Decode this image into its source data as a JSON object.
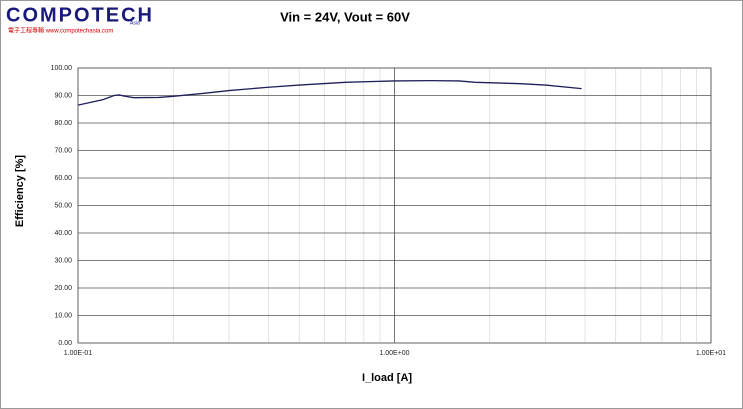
{
  "logo": {
    "name": "COMPOTECH",
    "region": "Asia",
    "subtitle": "電子工程專輯 www.compotechasia.com"
  },
  "chart_data": {
    "type": "line",
    "title": "Vin = 24V, Vout = 60V",
    "xlabel": "I_load  [A]",
    "ylabel": "Efficiency  [%]",
    "x": [
      0.1,
      0.12,
      0.13,
      0.135,
      0.14,
      0.15,
      0.18,
      0.2,
      0.25,
      0.3,
      0.4,
      0.5,
      0.7,
      1.0,
      1.3,
      1.6,
      1.8,
      2.5,
      3.0,
      3.9
    ],
    "values": [
      86.5,
      88.5,
      90,
      90.2,
      89.8,
      89.2,
      89.3,
      89.7,
      90.8,
      91.8,
      93,
      93.8,
      94.8,
      95.3,
      95.4,
      95.3,
      94.8,
      94.3,
      93.8,
      92.5
    ],
    "color": "#1f1f5c",
    "xscale": "log",
    "grid": true,
    "xlim": [
      0.1,
      10
    ],
    "xticks": [
      {
        "value": 0.1,
        "label": "1.00E-01"
      },
      {
        "value": 1,
        "label": "1.00E+00"
      },
      {
        "value": 10,
        "label": "1.00E+01"
      }
    ],
    "ylim": [
      0,
      100
    ],
    "yticks": [
      {
        "value": 0,
        "label": "0.00"
      },
      {
        "value": 10,
        "label": "10.00"
      },
      {
        "value": 20,
        "label": "20.00"
      },
      {
        "value": 30,
        "label": "30.00"
      },
      {
        "value": 40,
        "label": "40.00"
      },
      {
        "value": 50,
        "label": "50.00"
      },
      {
        "value": 60,
        "label": "60.00"
      },
      {
        "value": 70,
        "label": "70.00"
      },
      {
        "value": 80,
        "label": "80.00"
      },
      {
        "value": 90,
        "label": "90.00"
      },
      {
        "value": 100,
        "label": "100.00"
      }
    ]
  }
}
